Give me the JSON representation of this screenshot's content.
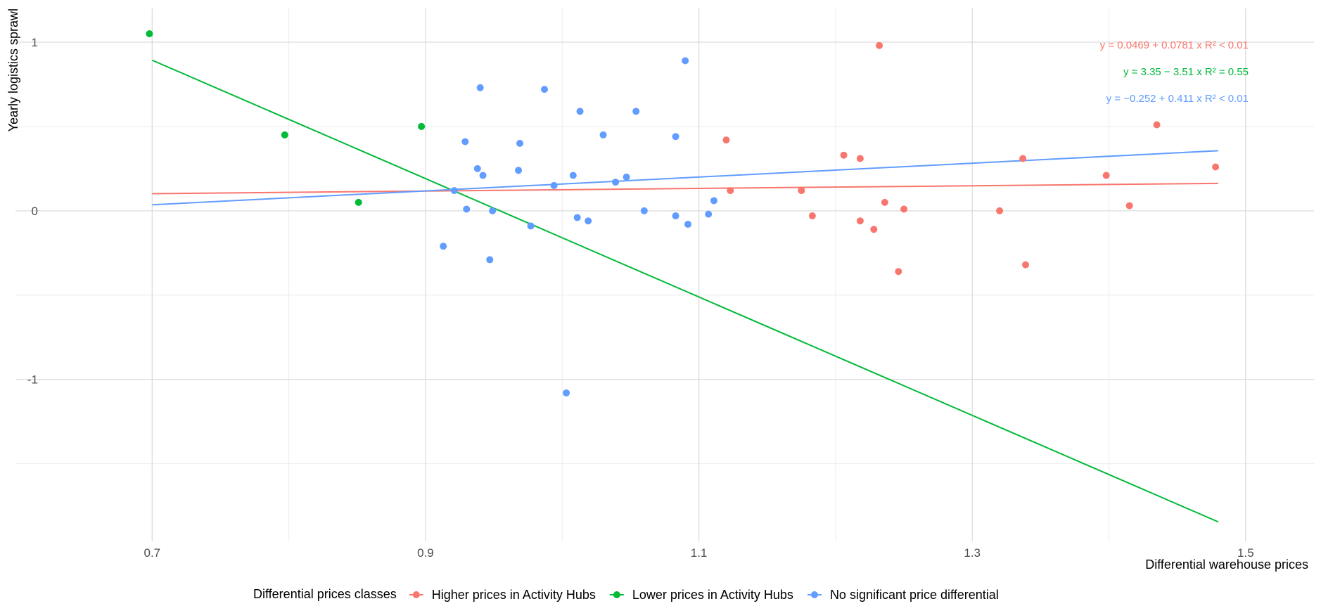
{
  "chart_data": {
    "type": "scatter",
    "xlabel": "Differential warehouse prices",
    "ylabel": "Yearly logistics sprawl",
    "xlim": [
      0.6,
      1.55
    ],
    "ylim": [
      -1.96,
      1.2
    ],
    "x_ticks": [
      0.7,
      0.9,
      1.1,
      1.3,
      1.5
    ],
    "y_ticks": [
      1,
      0,
      -1
    ],
    "x_tick_labels": [
      "0.7",
      "0.9",
      "1.1",
      "1.3",
      "1.5"
    ],
    "y_tick_labels": [
      "1",
      "0",
      "-1"
    ],
    "x_minor_gridlines": [
      0.8,
      1.0,
      1.2,
      1.4
    ],
    "y_minor_gridlines": [
      0.5,
      -0.5,
      -1.5
    ],
    "grid": true,
    "legend": {
      "title": "Differential prices classes",
      "position": "bottom"
    },
    "series": [
      {
        "name": "Higher prices in Activity Hubs",
        "color": "#F8766D",
        "fit": {
          "intercept": 0.0469,
          "slope": 0.0781,
          "x_range": [
            0.7,
            1.48
          ],
          "equation": "y = 0.0469 + 0.0781 x",
          "r2": "R² < 0.01"
        },
        "points": [
          {
            "x": 1.12,
            "y": 0.42
          },
          {
            "x": 1.123,
            "y": 0.12
          },
          {
            "x": 1.175,
            "y": 0.12
          },
          {
            "x": 1.183,
            "y": -0.03
          },
          {
            "x": 1.206,
            "y": 0.33
          },
          {
            "x": 1.218,
            "y": 0.31
          },
          {
            "x": 1.218,
            "y": -0.06
          },
          {
            "x": 1.228,
            "y": -0.11
          },
          {
            "x": 1.232,
            "y": 0.98
          },
          {
            "x": 1.236,
            "y": 0.05
          },
          {
            "x": 1.246,
            "y": -0.36
          },
          {
            "x": 1.25,
            "y": 0.01
          },
          {
            "x": 1.32,
            "y": 0.0
          },
          {
            "x": 1.337,
            "y": 0.31
          },
          {
            "x": 1.339,
            "y": -0.32
          },
          {
            "x": 1.398,
            "y": 0.21
          },
          {
            "x": 1.415,
            "y": 0.03
          },
          {
            "x": 1.435,
            "y": 0.51
          },
          {
            "x": 1.478,
            "y": 0.26
          }
        ]
      },
      {
        "name": "Lower prices in Activity Hubs",
        "color": "#00BA38",
        "fit": {
          "intercept": 3.35,
          "slope": -3.51,
          "x_range": [
            0.7,
            1.48
          ],
          "equation": "y = 3.35 − 3.51 x",
          "r2": "R² = 0.55"
        },
        "points": [
          {
            "x": 0.698,
            "y": 1.05
          },
          {
            "x": 0.797,
            "y": 0.45
          },
          {
            "x": 0.851,
            "y": 0.05
          },
          {
            "x": 0.897,
            "y": 0.5
          }
        ]
      },
      {
        "name": "No significant price differential",
        "color": "#619CFF",
        "fit": {
          "intercept": -0.252,
          "slope": 0.411,
          "x_range": [
            0.7,
            1.48
          ],
          "equation": "y = −0.252 + 0.411 x",
          "r2": "R² < 0.01"
        },
        "points": [
          {
            "x": 0.913,
            "y": -0.21
          },
          {
            "x": 0.921,
            "y": 0.12
          },
          {
            "x": 0.929,
            "y": 0.41
          },
          {
            "x": 0.93,
            "y": 0.01
          },
          {
            "x": 0.938,
            "y": 0.25
          },
          {
            "x": 0.94,
            "y": 0.73
          },
          {
            "x": 0.942,
            "y": 0.21
          },
          {
            "x": 0.947,
            "y": -0.29
          },
          {
            "x": 0.949,
            "y": 0.0
          },
          {
            "x": 0.968,
            "y": 0.24
          },
          {
            "x": 0.969,
            "y": 0.4
          },
          {
            "x": 0.977,
            "y": -0.09
          },
          {
            "x": 0.987,
            "y": 0.72
          },
          {
            "x": 0.994,
            "y": 0.15
          },
          {
            "x": 1.003,
            "y": -1.08
          },
          {
            "x": 1.008,
            "y": 0.21
          },
          {
            "x": 1.011,
            "y": -0.04
          },
          {
            "x": 1.013,
            "y": 0.59
          },
          {
            "x": 1.019,
            "y": -0.06
          },
          {
            "x": 1.03,
            "y": 0.45
          },
          {
            "x": 1.039,
            "y": 0.17
          },
          {
            "x": 1.047,
            "y": 0.2
          },
          {
            "x": 1.054,
            "y": 0.59
          },
          {
            "x": 1.06,
            "y": 0.0
          },
          {
            "x": 1.083,
            "y": 0.44
          },
          {
            "x": 1.083,
            "y": -0.03
          },
          {
            "x": 1.09,
            "y": 0.89
          },
          {
            "x": 1.092,
            "y": -0.08
          },
          {
            "x": 1.107,
            "y": -0.02
          },
          {
            "x": 1.111,
            "y": 0.06
          }
        ]
      }
    ]
  }
}
